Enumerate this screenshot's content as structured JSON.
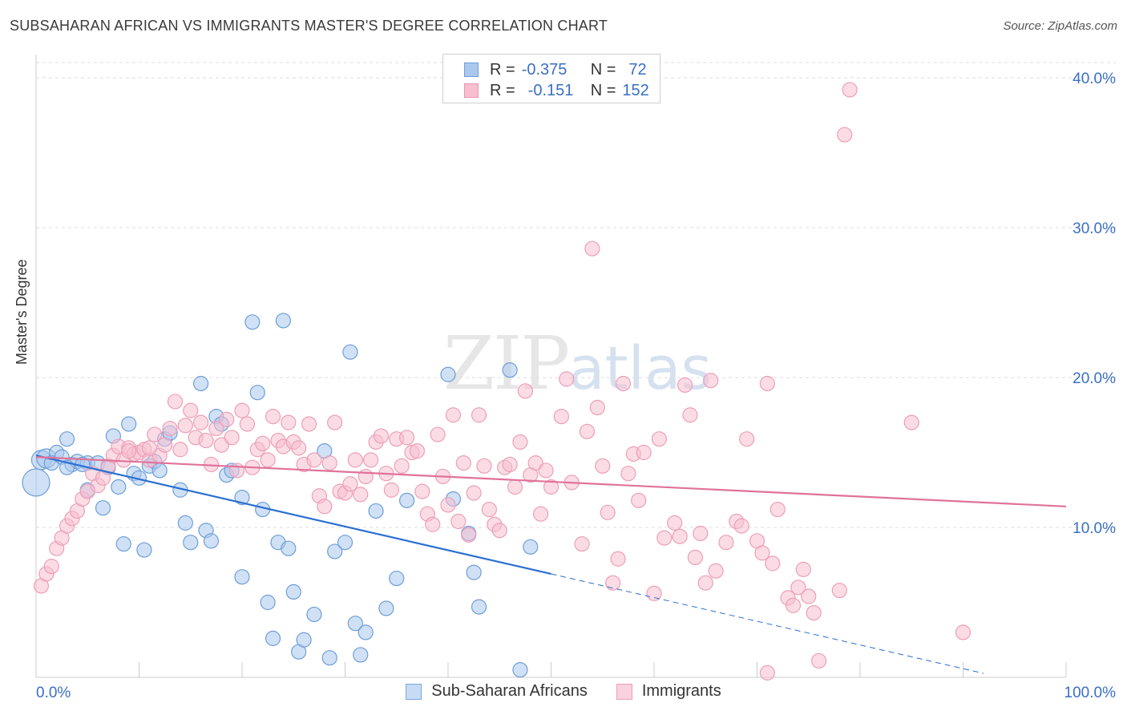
{
  "header": {
    "title": "SUBSAHARAN AFRICAN VS IMMIGRANTS MASTER'S DEGREE CORRELATION CHART",
    "source": "Source: ZipAtlas.com"
  },
  "watermark": {
    "zip": "ZIP",
    "atlas": "atlas"
  },
  "legend": {
    "r_label": "R =",
    "n_label": "N =",
    "rows": [
      {
        "r": "-0.375",
        "n": "72",
        "color": "#aac8ee",
        "border": "#6e9ed8"
      },
      {
        "r": "-0.151",
        "n": "152",
        "color": "#f7bfd0",
        "border": "#e995b0"
      }
    ]
  },
  "bottom_legend": [
    {
      "label": "Sub-Saharan Africans",
      "color": "#c7dbf4",
      "border": "#7aa7dd"
    },
    {
      "label": "Immigrants",
      "color": "#fad1de",
      "border": "#ec9fb8"
    }
  ],
  "chart_data": {
    "type": "scatter",
    "title": "SUBSAHARAN AFRICAN VS IMMIGRANTS MASTER'S DEGREE CORRELATION CHART",
    "xlabel": "",
    "ylabel": "Master's Degree",
    "xlim": [
      0,
      100
    ],
    "ylim": [
      0,
      40
    ],
    "x_tick_labels": [
      "0.0%",
      "100.0%"
    ],
    "y_ticks": [
      10,
      20,
      30,
      40
    ],
    "y_tick_labels": [
      "10.0%",
      "20.0%",
      "30.0%",
      "40.0%"
    ],
    "grid": true,
    "legend_position": "top-center",
    "series": [
      {
        "name": "Sub-Saharan Africans",
        "color": "#6e9ed8",
        "fill": "#aac8ee",
        "trend": {
          "x0": 0,
          "y0": 14.8,
          "x1": 50,
          "y1": 6.9,
          "dash_to_x": 92
        },
        "trend_color": "#2a6fd1",
        "points": [
          [
            0,
            13.0
          ],
          [
            0.5,
            14.5
          ],
          [
            1,
            14.6
          ],
          [
            2,
            15.0
          ],
          [
            3,
            15.9
          ],
          [
            3.5,
            14.2
          ],
          [
            4,
            14.4
          ],
          [
            5,
            14.3
          ],
          [
            5,
            12.5
          ],
          [
            6,
            14.3
          ],
          [
            6.5,
            11.3
          ],
          [
            7,
            14.0
          ],
          [
            7.5,
            16.1
          ],
          [
            8,
            12.7
          ],
          [
            8.5,
            8.9
          ],
          [
            9,
            16.9
          ],
          [
            9.5,
            13.6
          ],
          [
            10,
            13.3
          ],
          [
            10.5,
            8.5
          ],
          [
            11,
            14.1
          ],
          [
            11.5,
            14.4
          ],
          [
            12,
            13.8
          ],
          [
            12.5,
            15.9
          ],
          [
            13,
            16.3
          ],
          [
            14,
            12.5
          ],
          [
            14.5,
            10.3
          ],
          [
            15,
            9.0
          ],
          [
            16,
            19.6
          ],
          [
            16.5,
            9.8
          ],
          [
            17,
            9.1
          ],
          [
            17.5,
            17.4
          ],
          [
            18,
            16.9
          ],
          [
            18.5,
            13.5
          ],
          [
            19,
            13.8
          ],
          [
            20,
            6.7
          ],
          [
            20,
            12.0
          ],
          [
            21,
            23.7
          ],
          [
            21.5,
            19.0
          ],
          [
            22,
            11.2
          ],
          [
            22.5,
            5.0
          ],
          [
            23,
            2.6
          ],
          [
            23.5,
            9.0
          ],
          [
            24,
            23.8
          ],
          [
            24.5,
            8.6
          ],
          [
            25,
            5.7
          ],
          [
            25.5,
            1.7
          ],
          [
            26,
            2.5
          ],
          [
            27,
            4.2
          ],
          [
            28,
            15.1
          ],
          [
            28.5,
            1.3
          ],
          [
            29,
            8.4
          ],
          [
            30,
            9.0
          ],
          [
            30.5,
            21.7
          ],
          [
            31,
            3.6
          ],
          [
            31.5,
            1.5
          ],
          [
            32,
            3.0
          ],
          [
            33,
            11.1
          ],
          [
            34,
            4.6
          ],
          [
            35,
            6.6
          ],
          [
            36,
            11.8
          ],
          [
            40,
            20.2
          ],
          [
            40.5,
            11.9
          ],
          [
            42,
            9.6
          ],
          [
            42.5,
            7.0
          ],
          [
            43,
            4.7
          ],
          [
            46,
            20.5
          ],
          [
            47,
            0.5
          ],
          [
            48,
            8.7
          ],
          [
            1.5,
            14.3
          ],
          [
            2.5,
            14.7
          ],
          [
            4.5,
            14.2
          ],
          [
            3,
            14.0
          ]
        ]
      },
      {
        "name": "Immigrants",
        "color": "#ec9fb8",
        "fill": "#f7bfd0",
        "trend": {
          "x0": 0,
          "y0": 14.7,
          "x1": 100,
          "y1": 11.4
        },
        "trend_color": "#e0729a",
        "points": [
          [
            0.5,
            6.1
          ],
          [
            1,
            6.9
          ],
          [
            1.5,
            7.4
          ],
          [
            2,
            8.6
          ],
          [
            2.5,
            9.3
          ],
          [
            3,
            10.1
          ],
          [
            3.5,
            10.6
          ],
          [
            4,
            11.1
          ],
          [
            4.5,
            11.9
          ],
          [
            5,
            12.4
          ],
          [
            5.5,
            13.6
          ],
          [
            6,
            12.8
          ],
          [
            6.5,
            13.3
          ],
          [
            7,
            14.1
          ],
          [
            7.5,
            14.8
          ],
          [
            8,
            15.4
          ],
          [
            8.5,
            14.5
          ],
          [
            9,
            15.3
          ],
          [
            9.5,
            14.9
          ],
          [
            10,
            15.0
          ],
          [
            10.5,
            15.2
          ],
          [
            11,
            14.5
          ],
          [
            11.5,
            16.2
          ],
          [
            12,
            14.8
          ],
          [
            12.5,
            15.5
          ],
          [
            13,
            16.6
          ],
          [
            13.5,
            18.4
          ],
          [
            14,
            15.2
          ],
          [
            14.5,
            16.8
          ],
          [
            15,
            17.8
          ],
          [
            15.5,
            16.0
          ],
          [
            16,
            17.0
          ],
          [
            16.5,
            15.8
          ],
          [
            17,
            14.2
          ],
          [
            17.5,
            16.6
          ],
          [
            18,
            15.5
          ],
          [
            18.5,
            17.2
          ],
          [
            19,
            16.0
          ],
          [
            19.5,
            13.8
          ],
          [
            20,
            17.8
          ],
          [
            20.5,
            16.9
          ],
          [
            21,
            14.0
          ],
          [
            21.5,
            15.2
          ],
          [
            22,
            15.6
          ],
          [
            22.5,
            14.5
          ],
          [
            23,
            17.4
          ],
          [
            23.5,
            15.8
          ],
          [
            24,
            15.4
          ],
          [
            24.5,
            17.0
          ],
          [
            25,
            15.7
          ],
          [
            25.5,
            15.3
          ],
          [
            26,
            14.2
          ],
          [
            26.5,
            16.9
          ],
          [
            27,
            14.5
          ],
          [
            27.5,
            12.1
          ],
          [
            28,
            11.4
          ],
          [
            28.5,
            14.3
          ],
          [
            29,
            17.0
          ],
          [
            29.5,
            12.4
          ],
          [
            30,
            12.3
          ],
          [
            30.5,
            12.9
          ],
          [
            31,
            14.5
          ],
          [
            31.5,
            12.2
          ],
          [
            32,
            13.4
          ],
          [
            32.5,
            14.5
          ],
          [
            33,
            15.7
          ],
          [
            33.5,
            16.1
          ],
          [
            34,
            13.6
          ],
          [
            34.5,
            12.5
          ],
          [
            35,
            15.9
          ],
          [
            35.5,
            14.1
          ],
          [
            36,
            16.0
          ],
          [
            36.5,
            15.0
          ],
          [
            37,
            15.1
          ],
          [
            37.5,
            12.4
          ],
          [
            38,
            10.9
          ],
          [
            38.5,
            10.2
          ],
          [
            39,
            16.2
          ],
          [
            39.5,
            13.4
          ],
          [
            40,
            11.5
          ],
          [
            40.5,
            17.5
          ],
          [
            41,
            10.4
          ],
          [
            41.5,
            14.3
          ],
          [
            42,
            9.5
          ],
          [
            42.5,
            12.3
          ],
          [
            43,
            17.5
          ],
          [
            43.5,
            14.1
          ],
          [
            44,
            11.2
          ],
          [
            44.5,
            10.2
          ],
          [
            45,
            9.8
          ],
          [
            45.5,
            14.0
          ],
          [
            46,
            14.2
          ],
          [
            46.5,
            12.7
          ],
          [
            47,
            15.7
          ],
          [
            47.5,
            19.1
          ],
          [
            48,
            13.5
          ],
          [
            48.5,
            14.3
          ],
          [
            49,
            10.9
          ],
          [
            49.5,
            13.8
          ],
          [
            50,
            12.7
          ],
          [
            51,
            17.4
          ],
          [
            51.5,
            19.9
          ],
          [
            52,
            13.0
          ],
          [
            53,
            8.9
          ],
          [
            53.5,
            16.4
          ],
          [
            54,
            28.6
          ],
          [
            54.5,
            18.0
          ],
          [
            55,
            14.1
          ],
          [
            55.5,
            11.0
          ],
          [
            56,
            6.3
          ],
          [
            56.5,
            7.9
          ],
          [
            57,
            19.6
          ],
          [
            57.5,
            13.6
          ],
          [
            58,
            14.9
          ],
          [
            58.5,
            11.8
          ],
          [
            59,
            15.0
          ],
          [
            60,
            5.6
          ],
          [
            60.5,
            15.9
          ],
          [
            61,
            9.3
          ],
          [
            62,
            10.3
          ],
          [
            62.5,
            9.4
          ],
          [
            63,
            19.5
          ],
          [
            63.5,
            17.5
          ],
          [
            64,
            8.0
          ],
          [
            64.5,
            9.6
          ],
          [
            65,
            6.3
          ],
          [
            65.5,
            19.8
          ],
          [
            66,
            7.1
          ],
          [
            67,
            9.0
          ],
          [
            68,
            10.4
          ],
          [
            68.5,
            10.1
          ],
          [
            69,
            15.9
          ],
          [
            70,
            9.1
          ],
          [
            70.5,
            8.3
          ],
          [
            71,
            19.6
          ],
          [
            71.5,
            7.6
          ],
          [
            72,
            11.2
          ],
          [
            73,
            5.3
          ],
          [
            73.5,
            4.8
          ],
          [
            74,
            6.0
          ],
          [
            74.5,
            7.2
          ],
          [
            75,
            5.4
          ],
          [
            75.5,
            4.3
          ],
          [
            76,
            1.1
          ],
          [
            78,
            5.8
          ],
          [
            78.5,
            36.2
          ],
          [
            79,
            39.2
          ],
          [
            85,
            17.0
          ],
          [
            90,
            3.0
          ],
          [
            71,
            0.3
          ],
          [
            9,
            15.1
          ],
          [
            11,
            15.3
          ]
        ]
      }
    ]
  }
}
